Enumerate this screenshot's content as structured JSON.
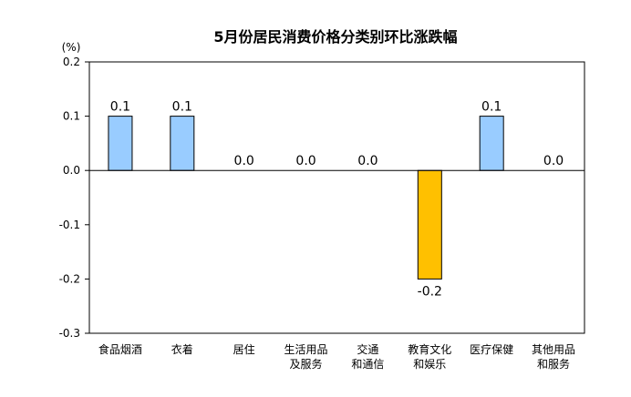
{
  "chart_data": {
    "type": "bar",
    "title": "5月份居民消费价格分类别环比涨跌幅",
    "unit_label": "(%)",
    "ylim": [
      -0.3,
      0.2
    ],
    "yticks": [
      0.2,
      0.1,
      0.0,
      -0.1,
      -0.2,
      -0.3
    ],
    "ytick_labels": [
      "0.2",
      "0.1",
      "0.0",
      "-0.1",
      "-0.2",
      "-0.3"
    ],
    "categories": [
      [
        "食品烟酒"
      ],
      [
        "衣着"
      ],
      [
        "居住"
      ],
      [
        "生活用品",
        "及服务"
      ],
      [
        "交通",
        "和通信"
      ],
      [
        "教育文化",
        "和娱乐"
      ],
      [
        "医疗保健"
      ],
      [
        "其他用品",
        "和服务"
      ]
    ],
    "values": [
      0.1,
      0.1,
      0.0,
      0.0,
      0.0,
      -0.2,
      0.1,
      0.0
    ],
    "value_labels": [
      "0.1",
      "0.1",
      "0.0",
      "0.0",
      "0.0",
      "-0.2",
      "0.1",
      "0.0"
    ],
    "grid": false,
    "colors": {
      "positive_fill": "#99CCFF",
      "negative_fill": "#FFC000",
      "bar_stroke": "#000000",
      "axis": "#000000"
    }
  }
}
